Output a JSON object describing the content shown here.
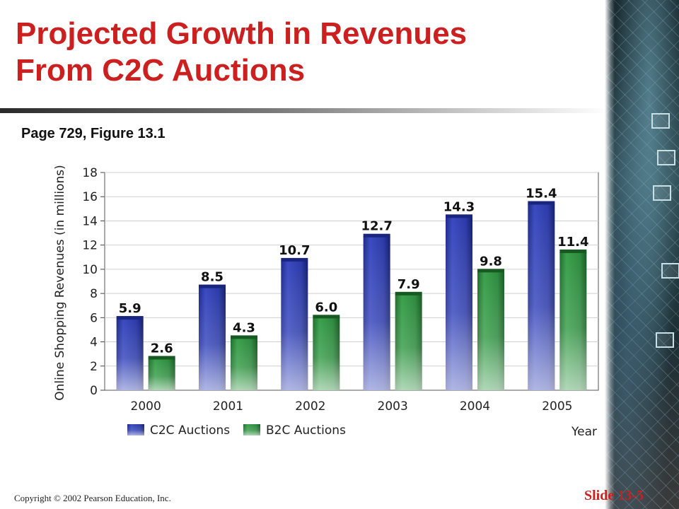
{
  "slide": {
    "title_line1": "Projected Growth in Revenues",
    "title_line2": "From C2C Auctions",
    "subtitle": "Page 729, Figure 13.1",
    "copyright": "Copyright © 2002 Pearson Education, Inc.",
    "slide_number": "Slide 13-5"
  },
  "colors": {
    "title": "#cc1f1f",
    "c2c": "#2f3fa8",
    "b2c": "#2e8a3e"
  },
  "chart_data": {
    "type": "bar",
    "categories": [
      "2000",
      "2001",
      "2002",
      "2003",
      "2004",
      "2005"
    ],
    "series": [
      {
        "name": "C2C Auctions",
        "values": [
          5.9,
          8.5,
          10.7,
          12.7,
          14.3,
          15.4
        ]
      },
      {
        "name": "B2C Auctions",
        "values": [
          2.6,
          4.3,
          6.0,
          7.9,
          9.8,
          11.4
        ]
      }
    ],
    "value_labels": [
      [
        "5.9",
        "8.5",
        "10.7",
        "12.7",
        "14.3",
        "15.4"
      ],
      [
        "2.6",
        "4.3",
        "6.0",
        "7.9",
        "9.8",
        "11.4"
      ]
    ],
    "ylabel": "Online Shopping Revenues (in millions)",
    "xlabel": "Year",
    "ylim": [
      0,
      18
    ],
    "yticks": [
      "0",
      "2",
      "4",
      "6",
      "8",
      "10",
      "12",
      "14",
      "16",
      "18"
    ],
    "grid": true,
    "legend": "bottom-left"
  }
}
